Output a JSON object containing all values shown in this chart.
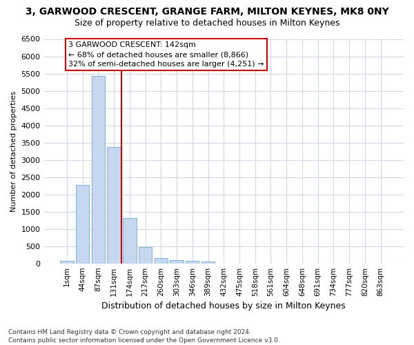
{
  "title": "3, GARWOOD CRESCENT, GRANGE FARM, MILTON KEYNES, MK8 0NY",
  "subtitle": "Size of property relative to detached houses in Milton Keynes",
  "xlabel": "Distribution of detached houses by size in Milton Keynes",
  "ylabel": "Number of detached properties",
  "footnote1": "Contains HM Land Registry data © Crown copyright and database right 2024.",
  "footnote2": "Contains public sector information licensed under the Open Government Licence v3.0.",
  "categories": [
    "1sqm",
    "44sqm",
    "87sqm",
    "131sqm",
    "174sqm",
    "217sqm",
    "260sqm",
    "303sqm",
    "346sqm",
    "389sqm",
    "432sqm",
    "475sqm",
    "518sqm",
    "561sqm",
    "604sqm",
    "648sqm",
    "691sqm",
    "734sqm",
    "777sqm",
    "820sqm",
    "863sqm"
  ],
  "values": [
    70,
    2270,
    5430,
    3380,
    1310,
    480,
    160,
    90,
    70,
    55,
    0,
    0,
    0,
    0,
    0,
    0,
    0,
    0,
    0,
    0,
    0
  ],
  "bar_color": "#c5d8f0",
  "bar_edge_color": "#6aaad4",
  "grid_color": "#d0d8e8",
  "background_color": "#ffffff",
  "annotation_line1": "3 GARWOOD CRESCENT: 142sqm",
  "annotation_line2": "← 68% of detached houses are smaller (8,866)",
  "annotation_line3": "32% of semi-detached houses are larger (4,251) →",
  "annotation_box_facecolor": "#ffffff",
  "annotation_box_edgecolor": "#cc0000",
  "vline_color": "#cc0000",
  "vline_x": 3.5,
  "ylim_max": 6500,
  "ytick_step": 500,
  "title_fontsize": 10,
  "subtitle_fontsize": 9,
  "xlabel_fontsize": 9,
  "ylabel_fontsize": 8,
  "tick_fontsize": 8,
  "xtick_fontsize": 7.5,
  "footnote_fontsize": 6.5,
  "annotation_fontsize": 8
}
